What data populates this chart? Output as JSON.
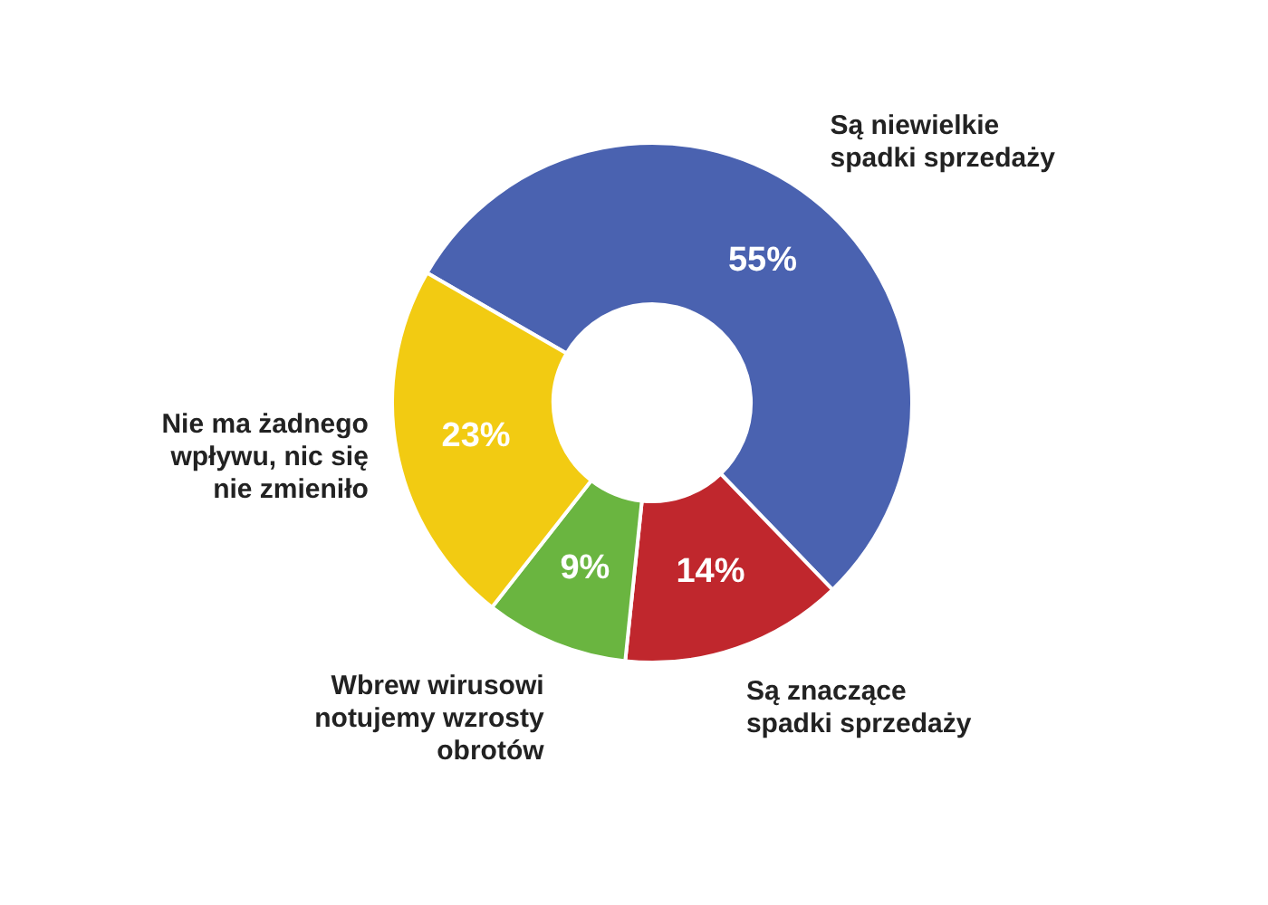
{
  "chart_data": {
    "type": "donut",
    "categories": [
      "Są niewielkie spadki sprzedaży",
      "Są znaczące spadki sprzedaży",
      "Wbrew wirusowi notujemy wzrosty obrotów",
      "Nie ma żadnego wpływu, nic się nie zmieniło"
    ],
    "values": [
      55,
      14,
      9,
      23
    ],
    "colors": [
      "#4a62b0",
      "#c0272d",
      "#6ab540",
      "#f2cb12"
    ],
    "value_labels": [
      "55%",
      "14%",
      "9%",
      "23%"
    ]
  }
}
